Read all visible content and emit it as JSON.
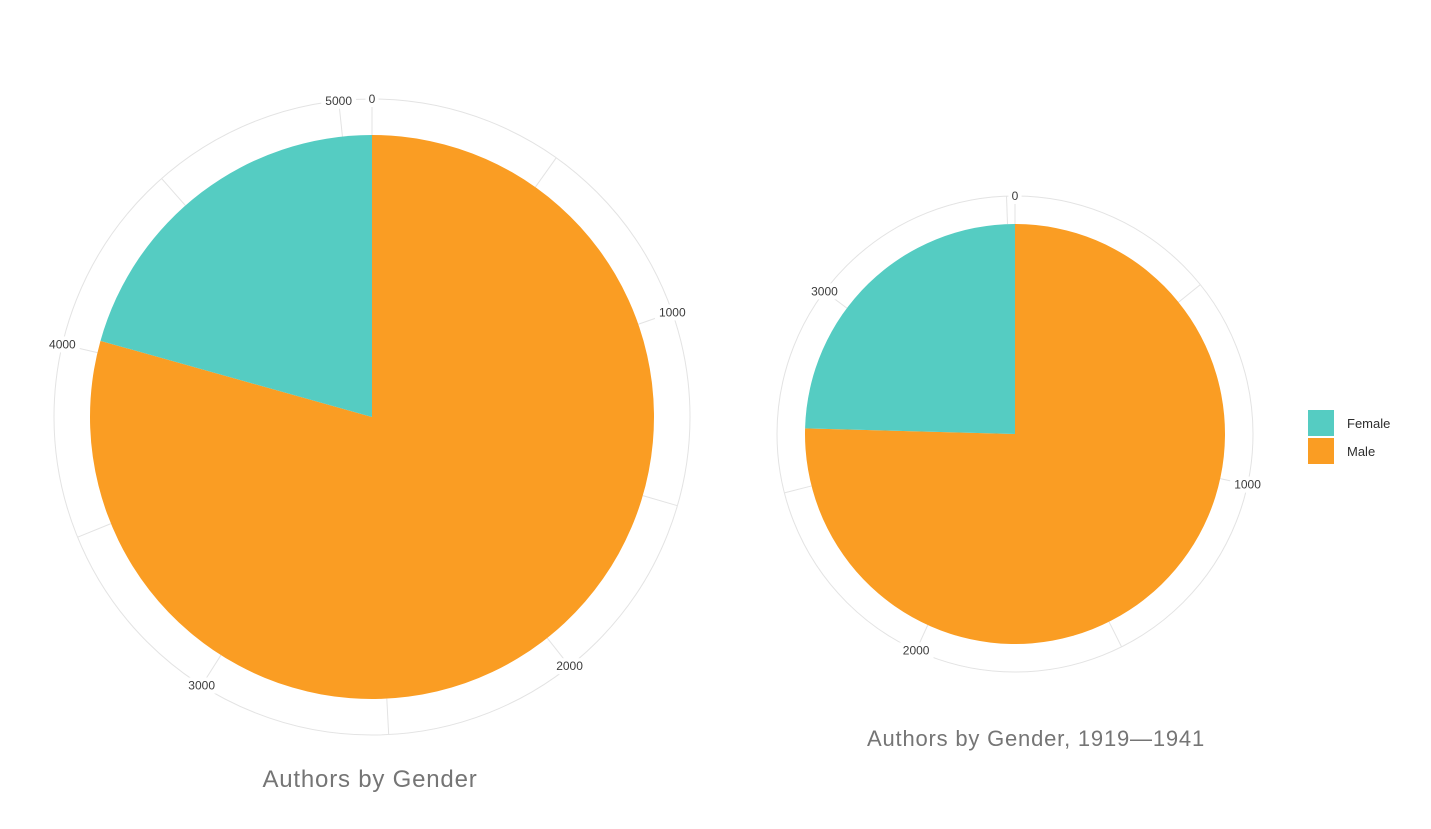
{
  "page": {
    "background": "#ffffff"
  },
  "colors": {
    "female": "#55CCC2",
    "male": "#FA9D23",
    "axis_line": "#e3e3e3",
    "tick_label": "#3c3c3c",
    "title_text": "#757575"
  },
  "legend": {
    "position": "right",
    "entries": [
      {
        "label": "Female",
        "color": "#55CCC2"
      },
      {
        "label": "Male",
        "color": "#FA9D23"
      }
    ]
  },
  "chart_data": [
    {
      "type": "pie",
      "title": "Authors by Gender",
      "categories": [
        "Male",
        "Female"
      ],
      "values": [
        4035,
        1050
      ],
      "total": 5085,
      "colors": [
        "#FA9D23",
        "#55CCC2"
      ],
      "start": "top",
      "direction": "clockwise",
      "axis": {
        "range": [
          0,
          5085
        ],
        "minor_tick_step": 500,
        "label_step": 1000,
        "tick_labels": [
          "0",
          "1000",
          "2000",
          "3000",
          "4000",
          "5000"
        ],
        "grid": "outer-ring-with-ticks"
      }
    },
    {
      "type": "pie",
      "title": "Authors by Gender, 1919—1941",
      "categories": [
        "Male",
        "Female"
      ],
      "values": [
        2655,
        865
      ],
      "total": 3520,
      "colors": [
        "#FA9D23",
        "#55CCC2"
      ],
      "start": "top",
      "direction": "clockwise",
      "axis": {
        "range": [
          0,
          3520
        ],
        "minor_tick_step": 500,
        "label_step": 1000,
        "tick_labels": [
          "0",
          "1000",
          "2000",
          "3000"
        ],
        "grid": "outer-ring-with-ticks"
      }
    }
  ]
}
